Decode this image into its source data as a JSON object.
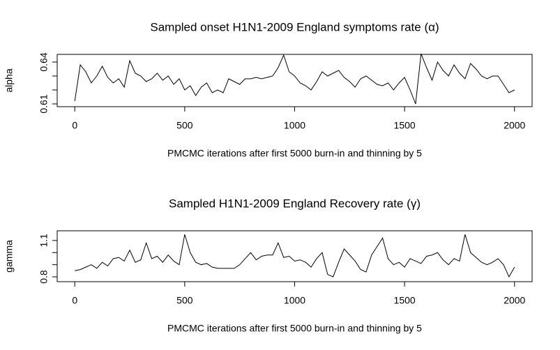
{
  "chart_data": [
    {
      "type": "line",
      "title": "Sampled onset H1N1-2009 England symptoms rate (α)",
      "xlabel": "PMCMC iterations after first 5000 burn-in and thinning by 5",
      "ylabel": "alpha",
      "x": [
        0,
        25,
        50,
        75,
        100,
        125,
        150,
        175,
        200,
        225,
        250,
        275,
        300,
        325,
        350,
        375,
        400,
        425,
        450,
        475,
        500,
        525,
        550,
        575,
        600,
        625,
        650,
        675,
        700,
        725,
        750,
        775,
        800,
        825,
        850,
        875,
        900,
        925,
        950,
        975,
        1000,
        1025,
        1050,
        1075,
        1100,
        1125,
        1150,
        1175,
        1200,
        1225,
        1250,
        1275,
        1300,
        1325,
        1350,
        1375,
        1400,
        1425,
        1450,
        1475,
        1500,
        1525,
        1550,
        1575,
        1600,
        1625,
        1650,
        1675,
        1700,
        1725,
        1750,
        1775,
        1800,
        1825,
        1850,
        1875,
        1900,
        1925,
        1950,
        1975,
        2000
      ],
      "series": [
        {
          "color": "#000000",
          "values": [
            0.612,
            0.638,
            0.633,
            0.625,
            0.63,
            0.637,
            0.629,
            0.625,
            0.628,
            0.622,
            0.641,
            0.632,
            0.63,
            0.626,
            0.628,
            0.632,
            0.627,
            0.63,
            0.624,
            0.628,
            0.62,
            0.623,
            0.616,
            0.622,
            0.625,
            0.618,
            0.62,
            0.618,
            0.628,
            0.626,
            0.624,
            0.628,
            0.628,
            0.629,
            0.628,
            0.629,
            0.63,
            0.636,
            0.645,
            0.633,
            0.63,
            0.625,
            0.623,
            0.62,
            0.626,
            0.633,
            0.63,
            0.632,
            0.634,
            0.629,
            0.626,
            0.622,
            0.628,
            0.63,
            0.627,
            0.624,
            0.623,
            0.625,
            0.62,
            0.625,
            0.629,
            0.62,
            0.61,
            0.646,
            0.636,
            0.627,
            0.64,
            0.634,
            0.63,
            0.638,
            0.632,
            0.628,
            0.639,
            0.635,
            0.63,
            0.628,
            0.63,
            0.63,
            0.624,
            0.618,
            0.62
          ]
        }
      ],
      "xlim": [
        -80,
        2080
      ],
      "xticks": [
        0,
        500,
        1000,
        1500,
        2000
      ],
      "ylim": [
        0.608,
        0.6455
      ],
      "yticks": [
        0.61,
        {
          "value": 0.62,
          "label": null
        },
        {
          "value": 0.63,
          "label": null
        },
        0.64
      ]
    },
    {
      "type": "line",
      "title": "Sampled H1N1-2009 England Recovery rate (γ)",
      "xlabel": "PMCMC iterations after first 5000 burn-in and thinning by 5",
      "ylabel": "gamma",
      "x": [
        0,
        25,
        50,
        75,
        100,
        125,
        150,
        175,
        200,
        225,
        250,
        275,
        300,
        325,
        350,
        375,
        400,
        425,
        450,
        475,
        500,
        525,
        550,
        575,
        600,
        625,
        650,
        675,
        700,
        725,
        750,
        775,
        800,
        825,
        850,
        875,
        900,
        925,
        950,
        975,
        1000,
        1025,
        1050,
        1075,
        1100,
        1125,
        1150,
        1175,
        1200,
        1225,
        1250,
        1275,
        1300,
        1325,
        1350,
        1375,
        1400,
        1425,
        1450,
        1475,
        1500,
        1525,
        1550,
        1575,
        1600,
        1625,
        1650,
        1675,
        1700,
        1725,
        1750,
        1775,
        1800,
        1825,
        1850,
        1875,
        1900,
        1925,
        1950,
        1975,
        2000
      ],
      "series": [
        {
          "color": "#000000",
          "values": [
            0.85,
            0.86,
            0.88,
            0.9,
            0.87,
            0.92,
            0.89,
            0.95,
            0.96,
            0.93,
            1.02,
            0.92,
            0.94,
            1.08,
            0.95,
            0.97,
            0.92,
            0.98,
            0.93,
            0.9,
            1.15,
            1.0,
            0.92,
            0.9,
            0.91,
            0.88,
            0.87,
            0.87,
            0.87,
            0.87,
            0.9,
            0.95,
            1.0,
            0.94,
            0.97,
            0.98,
            0.98,
            1.08,
            0.96,
            0.97,
            0.93,
            0.94,
            0.92,
            0.88,
            0.95,
            1.0,
            0.82,
            0.8,
            0.92,
            1.03,
            0.98,
            0.93,
            0.86,
            0.84,
            0.98,
            1.05,
            1.12,
            0.95,
            0.9,
            0.92,
            0.88,
            0.95,
            0.93,
            0.91,
            0.97,
            0.98,
            1.0,
            0.94,
            0.9,
            0.95,
            0.93,
            1.15,
            1.0,
            0.96,
            0.92,
            0.9,
            0.92,
            0.95,
            0.9,
            0.8,
            0.88
          ]
        }
      ],
      "xlim": [
        -80,
        2080
      ],
      "xticks": [
        0,
        500,
        1000,
        1500,
        2000
      ],
      "ylim": [
        0.76,
        1.18
      ],
      "yticks": [
        0.8,
        {
          "value": 0.9,
          "label": null
        },
        {
          "value": 1.0,
          "label": null
        },
        1.1
      ]
    }
  ]
}
